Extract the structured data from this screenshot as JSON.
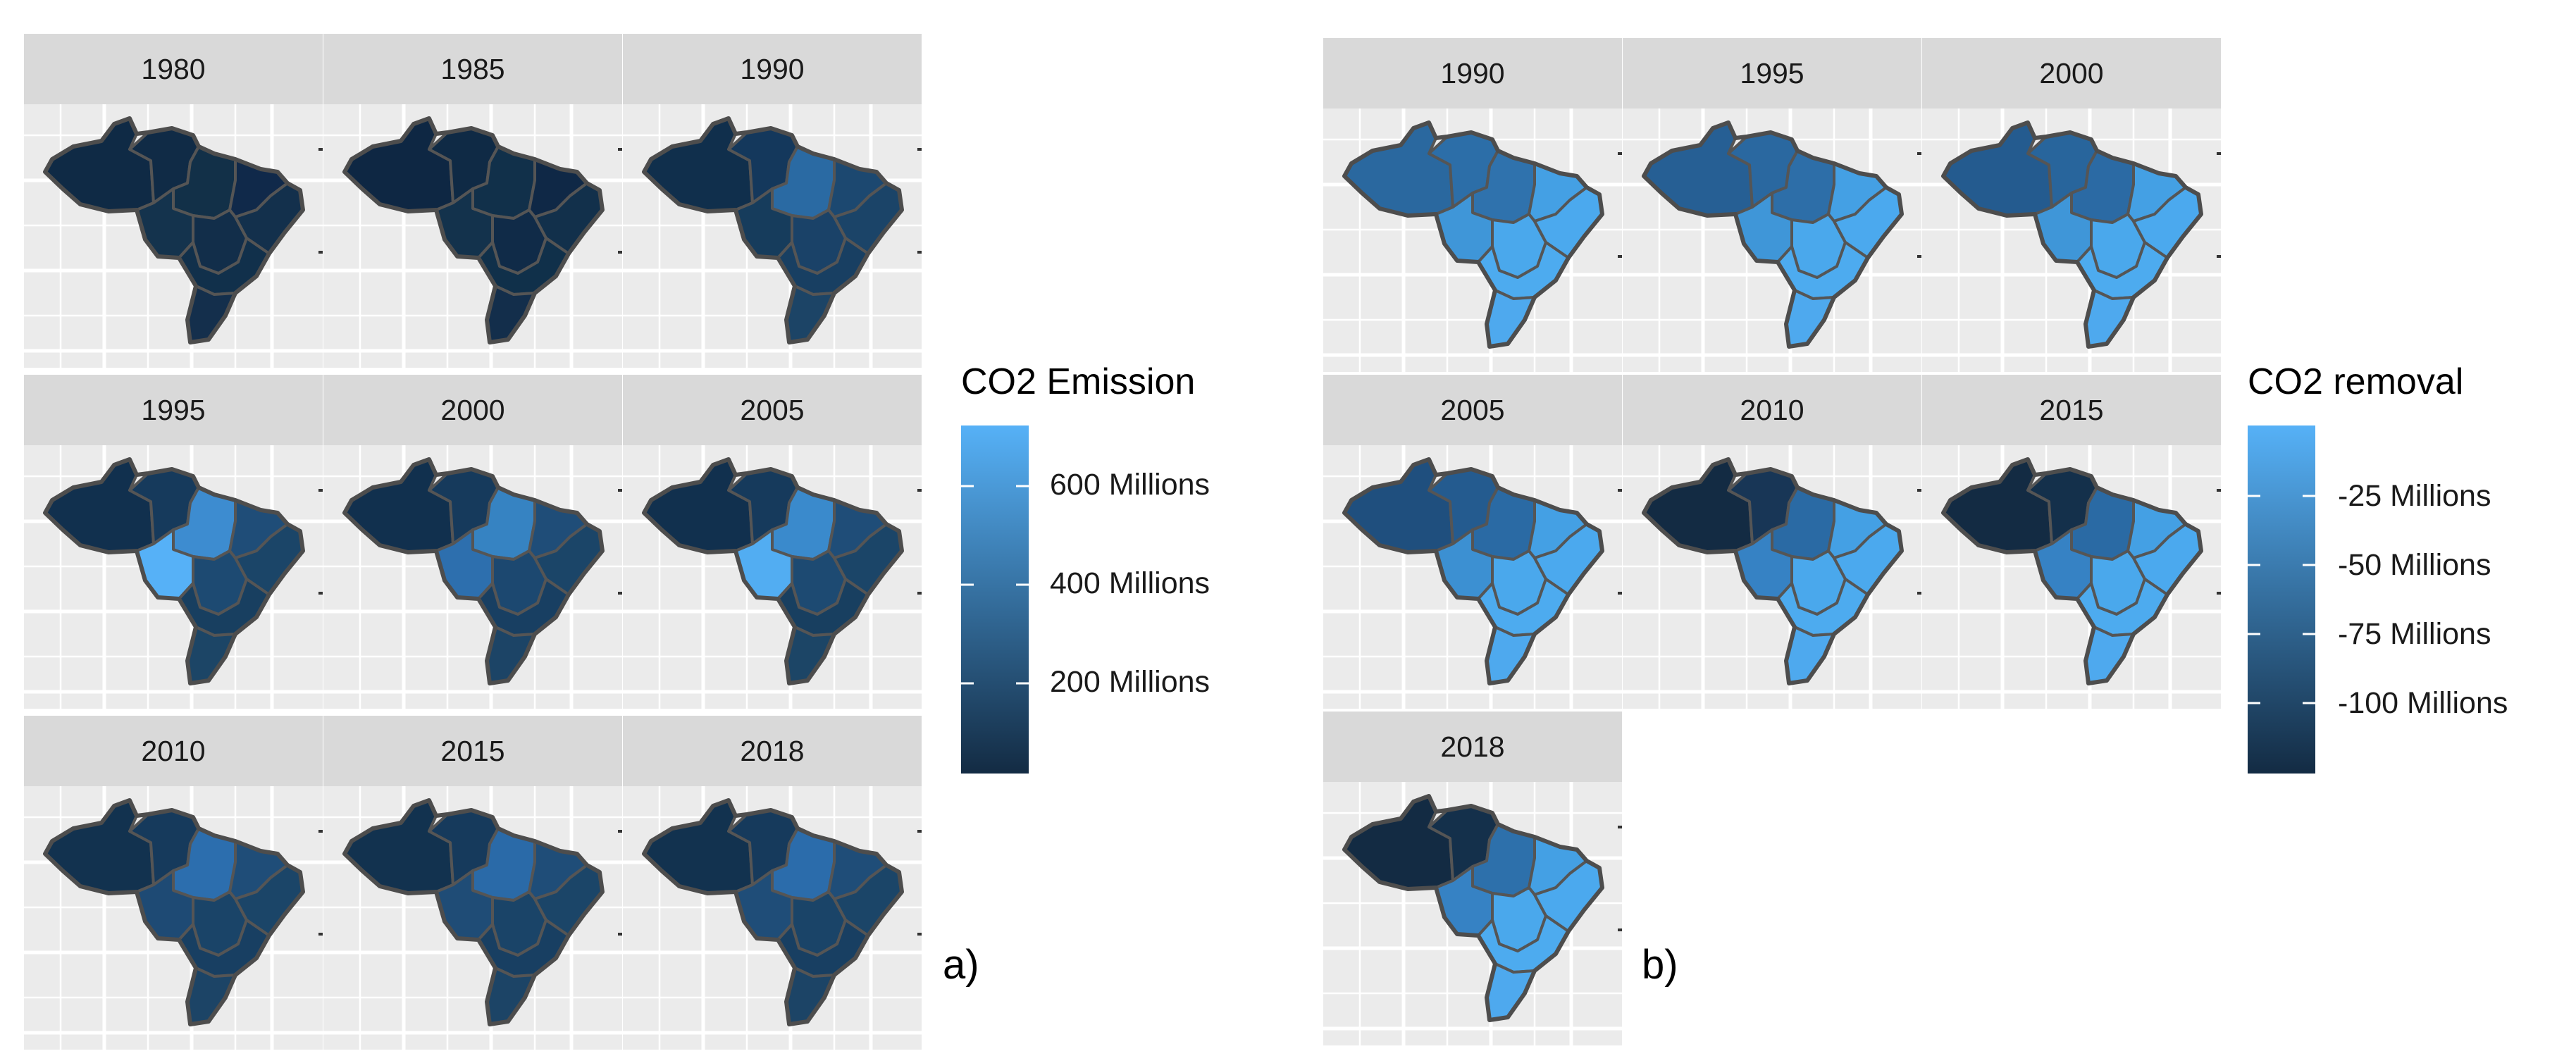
{
  "figure_a": {
    "label": "a)",
    "legend_title": "CO2 Emission",
    "legend_ticks": [
      "600 Millions",
      "400 Millions",
      "200 Millions"
    ],
    "colorbar": {
      "low": "#132b43",
      "high": "#56b1f7"
    },
    "panels": [
      {
        "year": "1980",
        "palette": [
          "#0f2a45",
          "#102b46",
          "#123048",
          "#14334d",
          "#10294a",
          "#122e4a",
          "#13304c",
          "#11304b",
          "#142f4c"
        ]
      },
      {
        "year": "1985",
        "palette": [
          "#0e2743",
          "#0f2a45",
          "#11304a",
          "#13324c",
          "#0f2846",
          "#102b48",
          "#12304b",
          "#10304a",
          "#132e4b"
        ]
      },
      {
        "year": "1990",
        "palette": [
          "#102f4c",
          "#14385c",
          "#2a6aa3",
          "#163c5c",
          "#1c4870",
          "#1a4268",
          "#1b4468",
          "#183f62",
          "#1c4466"
        ]
      },
      {
        "year": "1995",
        "palette": [
          "#11304e",
          "#163a5c",
          "#3d8cd0",
          "#56b1f7",
          "#1f4d78",
          "#1d4a72",
          "#1b4568",
          "#183f60",
          "#1c4566"
        ]
      },
      {
        "year": "2000",
        "palette": [
          "#11304e",
          "#163a5c",
          "#3683c2",
          "#2d6fae",
          "#1f4d78",
          "#1c4870",
          "#1b4568",
          "#183f62",
          "#1c4466"
        ]
      },
      {
        "year": "2005",
        "palette": [
          "#11304e",
          "#163a5c",
          "#3a8acc",
          "#52adf2",
          "#1f4d78",
          "#1d4a72",
          "#1b4568",
          "#183f60",
          "#1c4566"
        ]
      },
      {
        "year": "2010",
        "palette": [
          "#12324f",
          "#163a5c",
          "#2c6eae",
          "#1e4a74",
          "#1f4d78",
          "#1a4468",
          "#1b4568",
          "#183f62",
          "#1c4466"
        ]
      },
      {
        "year": "2015",
        "palette": [
          "#12324f",
          "#163a5c",
          "#2a6aa8",
          "#1f4c76",
          "#1f4d78",
          "#1a4468",
          "#1b4568",
          "#183f62",
          "#1c4466"
        ]
      },
      {
        "year": "2018",
        "palette": [
          "#12324f",
          "#163a5c",
          "#2b6cab",
          "#1f4d78",
          "#1f4d78",
          "#1a4468",
          "#1b4568",
          "#183f62",
          "#1c4466"
        ]
      }
    ]
  },
  "figure_b": {
    "label": "b)",
    "legend_title": "CO2 removal",
    "legend_ticks": [
      "-25 Millions",
      "-50 Millions",
      "-75 Millions",
      "-100 Millions"
    ],
    "colorbar": {
      "low": "#132b43",
      "high": "#56b1f7"
    },
    "panels": [
      {
        "year": "1990",
        "palette": [
          "#2a689f",
          "#2c6ea8",
          "#2f72ad",
          "#3f96d8",
          "#44a0e4",
          "#4aa8ec",
          "#4ba9ee",
          "#4dabef",
          "#4ea9ee"
        ]
      },
      {
        "year": "1995",
        "palette": [
          "#265f94",
          "#2a68a0",
          "#2d6ea8",
          "#3f96d8",
          "#44a0e4",
          "#4aa8ec",
          "#4ba9ee",
          "#4dabef",
          "#4ea9ee"
        ]
      },
      {
        "year": "2000",
        "palette": [
          "#245b8f",
          "#28659c",
          "#2b6aa4",
          "#3f96d8",
          "#44a0e4",
          "#4aa8ec",
          "#4ba9ee",
          "#4dabef",
          "#4ea9ee"
        ]
      },
      {
        "year": "2005",
        "palette": [
          "#1f4f7e",
          "#245b8f",
          "#2a6aa4",
          "#3c90d2",
          "#44a0e4",
          "#4aa8ec",
          "#4ba9ee",
          "#4dabef",
          "#4ea9ee"
        ]
      },
      {
        "year": "2010",
        "palette": [
          "#132b43",
          "#183656",
          "#2a6aa4",
          "#3682c4",
          "#44a0e4",
          "#4aa8ec",
          "#4ba9ee",
          "#4dabef",
          "#4ea9ee"
        ]
      },
      {
        "year": "2015",
        "palette": [
          "#132b43",
          "#14304b",
          "#2a6aa4",
          "#3682c4",
          "#44a0e4",
          "#4aa8ec",
          "#4ba9ee",
          "#4dabef",
          "#4ea9ee"
        ]
      },
      {
        "year": "2018",
        "palette": [
          "#132b43",
          "#14304b",
          "#2d70ab",
          "#3682c4",
          "#44a0e4",
          "#4aa8ec",
          "#4ba9ee",
          "#4dabef",
          "#4ea9ee"
        ]
      }
    ]
  }
}
